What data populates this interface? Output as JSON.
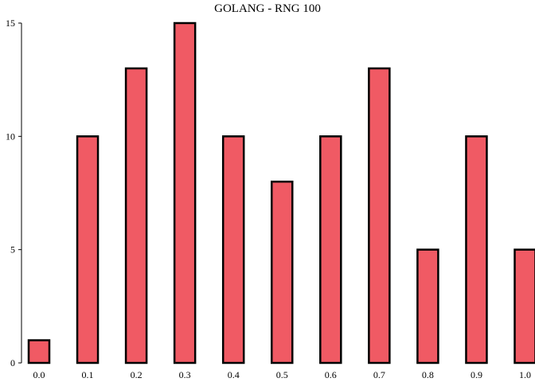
{
  "chart_data": {
    "type": "bar",
    "title": "GOLANG - RNG 100",
    "xlabel": "",
    "ylabel": "",
    "categories": [
      "0.0",
      "0.1",
      "0.2",
      "0.3",
      "0.4",
      "0.5",
      "0.6",
      "0.7",
      "0.8",
      "0.9",
      "1.0"
    ],
    "values": [
      1,
      10,
      13,
      15,
      10,
      8,
      10,
      13,
      5,
      10,
      5
    ],
    "ylim": [
      0,
      15
    ],
    "yticks": [
      0,
      5,
      10,
      15
    ],
    "grid": false,
    "legend": "none",
    "bar_color": "#f05a64",
    "edge_color": "#000000"
  }
}
